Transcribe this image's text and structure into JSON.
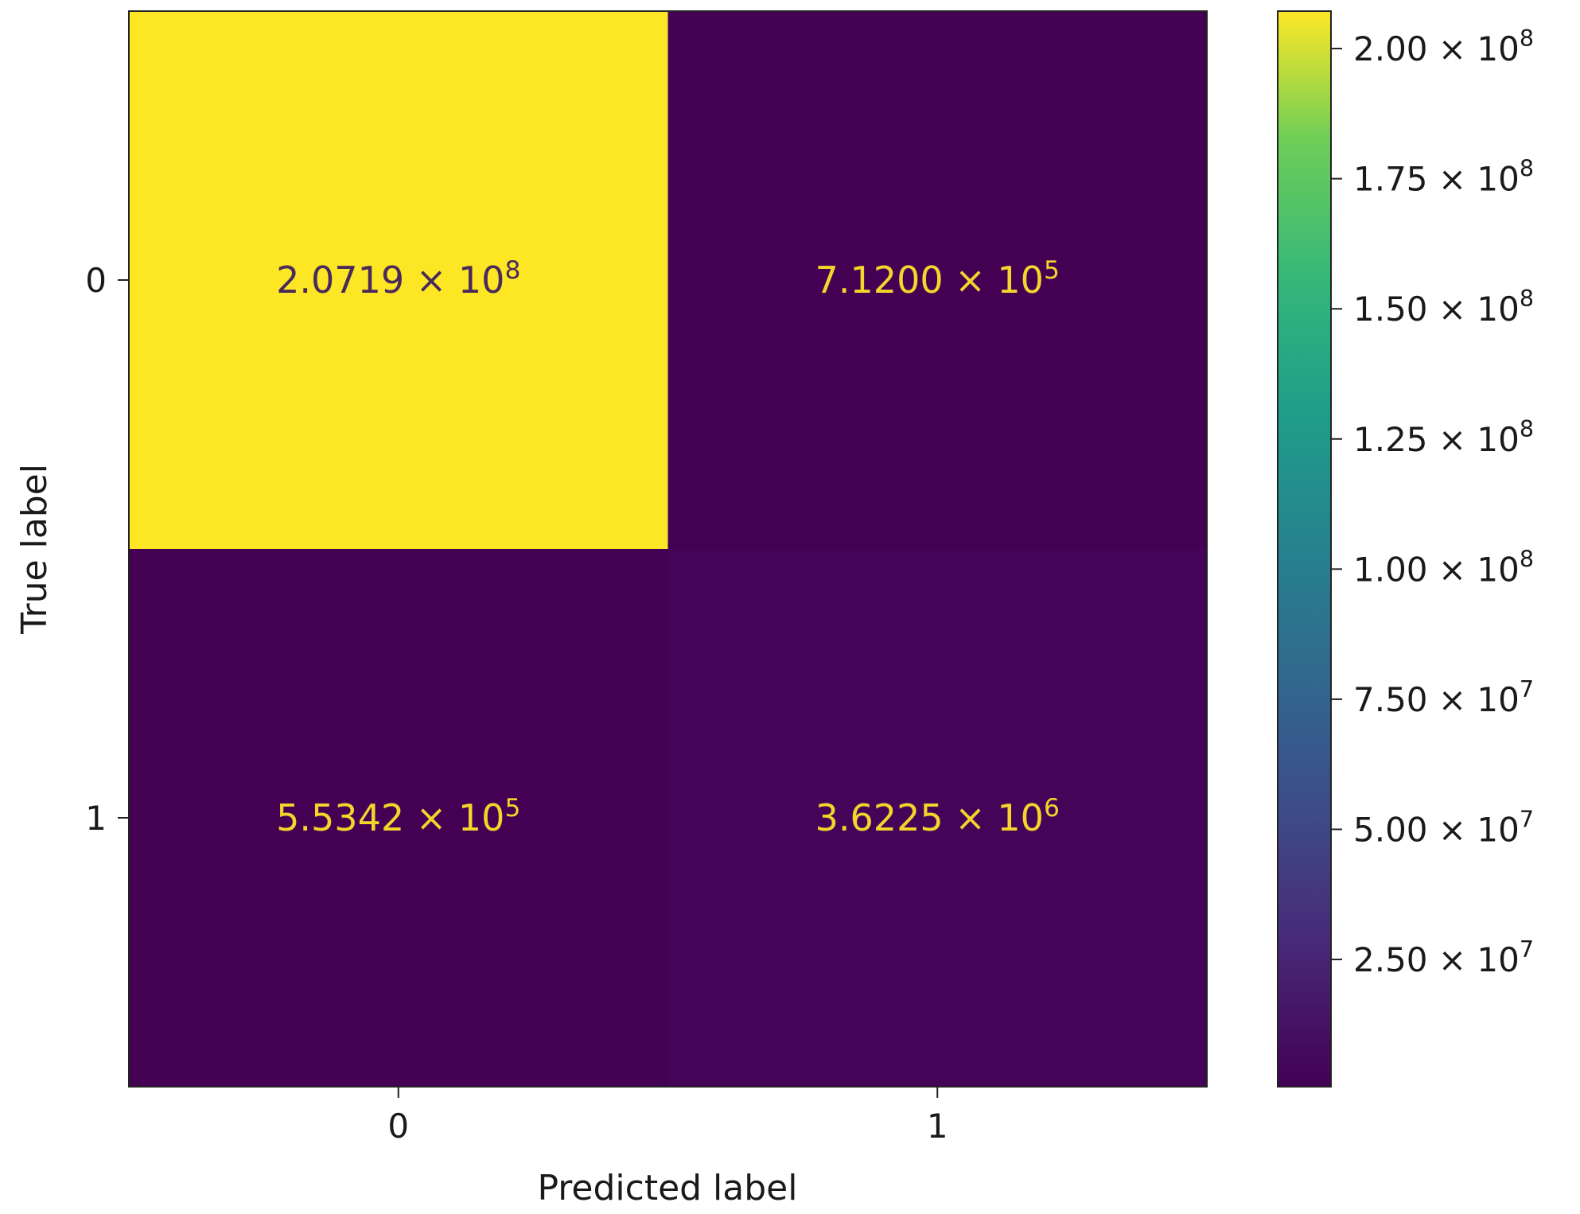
{
  "chart_data": {
    "type": "heatmap",
    "title": "",
    "xlabel": "Predicted label",
    "ylabel": "True label",
    "x_categories": [
      "0",
      "1"
    ],
    "y_categories": [
      "0",
      "1"
    ],
    "values": [
      [
        207190000,
        712000
      ],
      [
        553420,
        3622500
      ]
    ],
    "cell_labels": [
      [
        {
          "mantissa": "2.0719",
          "exponent": "8"
        },
        {
          "mantissa": "7.1200",
          "exponent": "5"
        }
      ],
      [
        {
          "mantissa": "5.5342",
          "exponent": "5"
        },
        {
          "mantissa": "3.6225",
          "exponent": "6"
        }
      ]
    ],
    "colormap": "viridis",
    "colors": {
      "low": "#440154",
      "high": "#fde725",
      "text_on_dark": "#f5d42b",
      "text_on_light": "#4a2a5a"
    },
    "colorbar": {
      "range": [
        553420,
        207190000
      ],
      "ticks": [
        {
          "value": 25000000,
          "mantissa": "2.50",
          "exponent": "7"
        },
        {
          "value": 50000000,
          "mantissa": "5.00",
          "exponent": "7"
        },
        {
          "value": 75000000,
          "mantissa": "7.50",
          "exponent": "7"
        },
        {
          "value": 100000000,
          "mantissa": "1.00",
          "exponent": "8"
        },
        {
          "value": 125000000,
          "mantissa": "1.25",
          "exponent": "8"
        },
        {
          "value": 150000000,
          "mantissa": "1.50",
          "exponent": "8"
        },
        {
          "value": 175000000,
          "mantissa": "1.75",
          "exponent": "8"
        },
        {
          "value": 200000000,
          "mantissa": "2.00",
          "exponent": "8"
        }
      ]
    },
    "grid": false
  }
}
